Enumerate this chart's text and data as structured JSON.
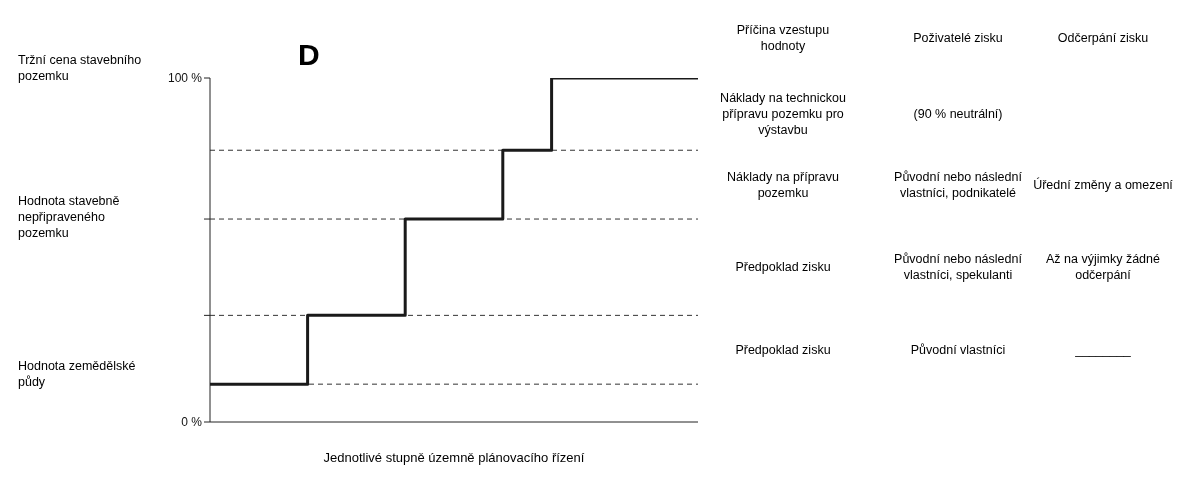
{
  "chart_data": {
    "type": "step",
    "title": "D",
    "xlabel": "Jednotlivé stupně územně plánovacího řízení",
    "categories": [
      null,
      null,
      null,
      null,
      null,
      null,
      null,
      null,
      null,
      null,
      null
    ],
    "values": [
      11,
      11,
      31,
      31,
      59,
      59,
      79,
      100,
      100,
      100,
      100
    ],
    "color": "#1a1a1a",
    "ylim": [
      0,
      100
    ],
    "yticks": [
      {
        "value": 0,
        "label": "0 %"
      },
      {
        "value": 31,
        "label": null
      },
      {
        "value": 59,
        "label": null
      },
      {
        "value": 100,
        "label": "100 %"
      }
    ],
    "tick_labels": "y",
    "marker": "none",
    "line_style": "solid",
    "ref_lines": [
      {
        "axis": "y",
        "value": 11,
        "line_style": "dashed"
      },
      {
        "axis": "y",
        "value": 31,
        "line_style": "dashed"
      },
      {
        "axis": "y",
        "value": 59,
        "line_style": "dashed"
      },
      {
        "axis": "y",
        "value": 79,
        "line_style": "dashed"
      }
    ],
    "annotations": [
      "Tržní cena stavebního pozemku",
      "Hodnota stavebně nepřipraveného pozemku",
      "Hodnota zemědělské půdy",
      "Příčina vzestupu hodnoty",
      "Poživatelé zisku",
      "Odčerpání zisku",
      "Náklady na technickou přípravu pozemku pro výstavbu",
      "(90 % neutrální)",
      null,
      "Náklady na přípravu pozemku",
      "Původní nebo následní vlastníci, podnikatelé",
      "Úřední změny a omezení",
      "Předpoklad zisku",
      "Původní nebo následní vlastníci, spekulanti",
      "Až na výjimky žádné odčerpání",
      "Předpoklad zisku",
      "Původní vlastníci",
      "________"
    ]
  }
}
